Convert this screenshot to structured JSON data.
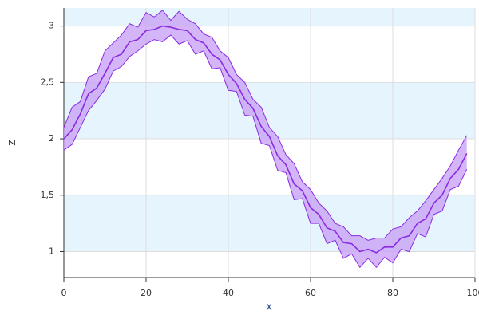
{
  "chart_data": {
    "type": "band-line",
    "xlabel": "X",
    "ylabel": "Z",
    "x": [
      0,
      2,
      4,
      6,
      8,
      10,
      12,
      14,
      16,
      18,
      20,
      22,
      24,
      26,
      28,
      30,
      32,
      34,
      36,
      38,
      40,
      42,
      44,
      46,
      48,
      50,
      52,
      54,
      56,
      58,
      60,
      62,
      64,
      66,
      68,
      70,
      72,
      74,
      76,
      78,
      80,
      82,
      84,
      86,
      88,
      90,
      92,
      94,
      96,
      98
    ],
    "values": [
      2.0,
      2.08,
      2.22,
      2.4,
      2.45,
      2.58,
      2.72,
      2.75,
      2.86,
      2.88,
      2.96,
      2.97,
      3.0,
      2.99,
      2.97,
      2.96,
      2.88,
      2.85,
      2.75,
      2.7,
      2.57,
      2.49,
      2.35,
      2.27,
      2.11,
      2.02,
      1.85,
      1.77,
      1.6,
      1.54,
      1.39,
      1.33,
      1.21,
      1.18,
      1.08,
      1.07,
      1.0,
      1.02,
      0.99,
      1.04,
      1.04,
      1.12,
      1.14,
      1.25,
      1.29,
      1.43,
      1.5,
      1.65,
      1.73,
      1.87
    ],
    "upper": [
      2.1,
      2.28,
      2.33,
      2.55,
      2.58,
      2.78,
      2.85,
      2.92,
      3.02,
      2.99,
      3.12,
      3.08,
      3.14,
      3.05,
      3.13,
      3.06,
      3.02,
      2.93,
      2.9,
      2.78,
      2.72,
      2.57,
      2.5,
      2.35,
      2.28,
      2.1,
      2.02,
      1.86,
      1.78,
      1.62,
      1.55,
      1.43,
      1.36,
      1.25,
      1.22,
      1.14,
      1.14,
      1.1,
      1.12,
      1.12,
      1.2,
      1.22,
      1.3,
      1.36,
      1.45,
      1.55,
      1.65,
      1.76,
      1.9,
      2.03
    ],
    "lower": [
      1.9,
      1.95,
      2.1,
      2.25,
      2.34,
      2.44,
      2.6,
      2.64,
      2.73,
      2.78,
      2.84,
      2.88,
      2.86,
      2.92,
      2.84,
      2.87,
      2.75,
      2.78,
      2.62,
      2.63,
      2.43,
      2.42,
      2.21,
      2.2,
      1.96,
      1.94,
      1.72,
      1.7,
      1.46,
      1.47,
      1.25,
      1.25,
      1.07,
      1.1,
      0.94,
      0.98,
      0.86,
      0.94,
      0.86,
      0.95,
      0.9,
      1.02,
      1.0,
      1.16,
      1.13,
      1.33,
      1.36,
      1.55,
      1.58,
      1.73
    ],
    "color": "#8a2be2",
    "band_color": "#c9a2f5",
    "stripe_color": "#e6f4fd",
    "xlim": [
      0,
      100
    ],
    "xticks": [
      0,
      20,
      40,
      60,
      80,
      100
    ],
    "ylim": [
      0.77,
      3.16
    ],
    "yticks": [
      1,
      {
        "value": 1.5,
        "label": "1,5"
      },
      2,
      {
        "value": 2.5,
        "label": "2,5"
      },
      3
    ],
    "grid": true
  }
}
